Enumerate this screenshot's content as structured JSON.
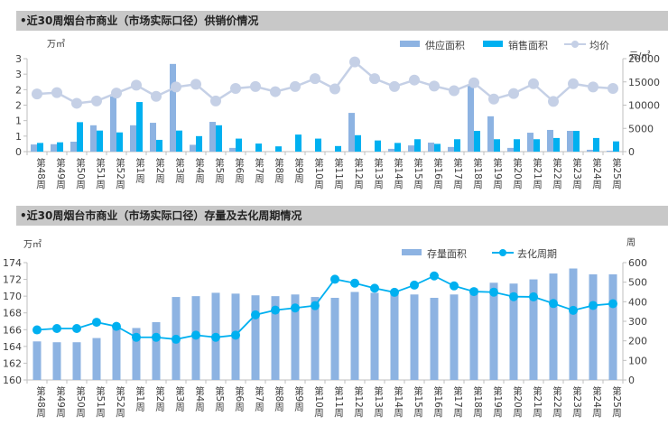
{
  "headers": {
    "top": "•近30周烟台市商业（市场实际口径）供销价情况",
    "bottom": "•近30周烟台市商业（市场实际口径）存量及去化周期情况"
  },
  "chart_data": [
    {
      "type": "bar",
      "title": "近30周烟台市商业（市场实际口径）供销价情况",
      "ylabel": "万㎡",
      "y2label": "元/㎡",
      "ylim": [
        0,
        3
      ],
      "y2lim": [
        0,
        20000
      ],
      "yticks": [
        "0",
        "1",
        "1",
        "2",
        "2",
        "3",
        "3"
      ],
      "y2ticks": [
        "0",
        "5000",
        "10000",
        "15000",
        "20000"
      ],
      "grid": false,
      "legend_position": "top-right",
      "categories": [
        "第48周",
        "第49周",
        "第50周",
        "第51周",
        "第52周",
        "第1周",
        "第2周",
        "第3周",
        "第4周",
        "第5周",
        "第6周",
        "第7周",
        "第8周",
        "第9周",
        "第10周",
        "第11周",
        "第12周",
        "第13周",
        "第14周",
        "第15周",
        "第16周",
        "第17周",
        "第18周",
        "第19周",
        "第20周",
        "第21周",
        "第22周",
        "第23周",
        "第24周",
        "第25周"
      ],
      "series": [
        {
          "name": "供应面积",
          "kind": "bar",
          "axis": "left",
          "color": "#8db3e2",
          "values": [
            0.23,
            0.24,
            0.32,
            0.85,
            1.78,
            0.85,
            0.93,
            2.83,
            0.22,
            0.96,
            0.12,
            0,
            0,
            0,
            0,
            0,
            1.25,
            0,
            0.09,
            0.2,
            0.29,
            0.15,
            2.15,
            1.14,
            0.12,
            0.61,
            0.7,
            0.67,
            0.06,
            0.03
          ]
        },
        {
          "name": "销售面积",
          "kind": "bar",
          "axis": "left",
          "color": "#00b0f0",
          "values": [
            0.28,
            0.3,
            0.95,
            0.68,
            0.62,
            1.6,
            0.38,
            0.68,
            0.5,
            0.85,
            0.42,
            0.26,
            0.17,
            0.55,
            0.42,
            0.18,
            0.53,
            0.36,
            0.28,
            0.4,
            0.25,
            0.4,
            0.67,
            0.4,
            0.4,
            0.4,
            0.44,
            0.67,
            0.44,
            0.33
          ]
        },
        {
          "name": "均价",
          "kind": "line",
          "axis": "right",
          "color": "#c5d0e6",
          "values": [
            12400,
            12700,
            10400,
            10900,
            12600,
            14300,
            11900,
            13900,
            14500,
            10900,
            13600,
            14000,
            12900,
            14000,
            15700,
            13500,
            19300,
            15700,
            14000,
            15400,
            14100,
            13100,
            14800,
            11300,
            12500,
            14600,
            10800,
            14600,
            13900,
            13600
          ]
        }
      ]
    },
    {
      "type": "bar",
      "title": "近30周烟台市商业（市场实际口径）存量及去化周期情况",
      "ylabel": "万㎡",
      "y2label": "周",
      "ylim": [
        160,
        174
      ],
      "y2lim": [
        0,
        600
      ],
      "yticks": [
        "160",
        "162",
        "164",
        "166",
        "168",
        "170",
        "172",
        "174"
      ],
      "y2ticks": [
        "0",
        "100",
        "200",
        "300",
        "400",
        "500",
        "600"
      ],
      "grid": false,
      "legend_position": "top-right",
      "categories": [
        "第48周",
        "第49周",
        "第50周",
        "第51周",
        "第52周",
        "第1周",
        "第2周",
        "第3周",
        "第4周",
        "第5周",
        "第6周",
        "第7周",
        "第8周",
        "第9周",
        "第10周",
        "第11周",
        "第12周",
        "第13周",
        "第14周",
        "第15周",
        "第16周",
        "第17周",
        "第18周",
        "第19周",
        "第20周",
        "第21周",
        "第22周",
        "第23周",
        "第24周",
        "第25周"
      ],
      "series": [
        {
          "name": "存量面积",
          "kind": "bar",
          "axis": "left",
          "color": "#8db3e2",
          "values": [
            164.6,
            164.5,
            164.5,
            165.0,
            166.3,
            166.2,
            166.9,
            169.9,
            170.0,
            170.4,
            170.3,
            170.1,
            170.0,
            170.2,
            169.9,
            169.8,
            170.5,
            170.4,
            170.3,
            170.2,
            169.8,
            170.2,
            170.9,
            171.6,
            171.5,
            172.0,
            172.7,
            173.3,
            172.6,
            172.6
          ]
        },
        {
          "name": "去化周期",
          "kind": "line",
          "axis": "right",
          "color": "#00b0f0",
          "values": [
            256,
            263,
            263,
            295,
            274,
            218,
            218,
            208,
            229,
            218,
            229,
            333,
            357,
            368,
            380,
            515,
            495,
            469,
            448,
            485,
            532,
            481,
            452,
            449,
            426,
            425,
            391,
            356,
            381,
            390
          ]
        }
      ]
    }
  ]
}
